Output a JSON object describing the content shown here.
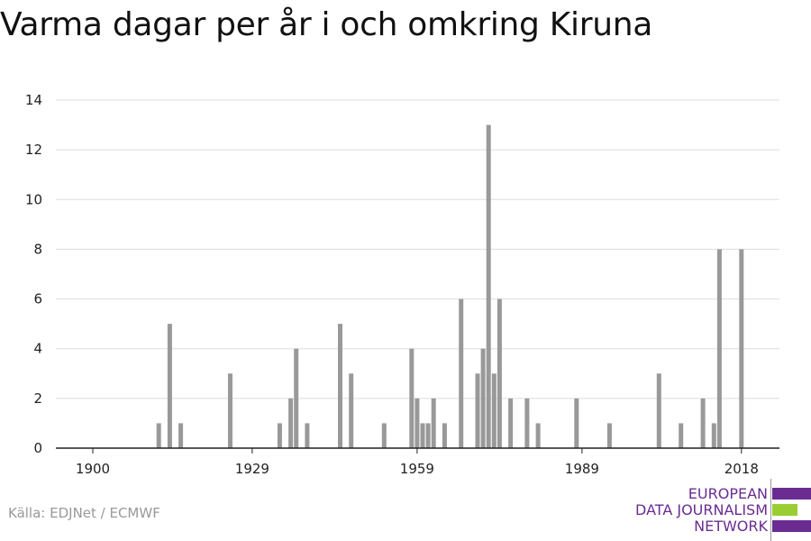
{
  "title": "Varma dagar per år i och omkring Kiruna",
  "source": "Källa: EDJNet / ECMWF",
  "logo": {
    "lines": [
      "EUROPEAN",
      "DATA JOURNALISM",
      "NETWORK"
    ],
    "bar_colors": [
      "#6a2c91",
      "#9acd32",
      "#6a2c91"
    ]
  },
  "colors": {
    "bar": "#999999",
    "grid": "#dddddd",
    "axis": "#222222"
  },
  "chart_data": {
    "type": "bar",
    "title": "Varma dagar per år i och omkring Kiruna",
    "xlabel": "",
    "ylabel": "",
    "xlim": [
      1900,
      2020
    ],
    "ylim": [
      0,
      14
    ],
    "yticks": [
      0,
      2,
      4,
      6,
      8,
      10,
      12,
      14
    ],
    "xticks": [
      1900,
      1929,
      1959,
      1989,
      2018
    ],
    "grid": true,
    "x": [
      1912,
      1914,
      1916,
      1925,
      1934,
      1936,
      1937,
      1939,
      1945,
      1947,
      1953,
      1958,
      1959,
      1960,
      1961,
      1962,
      1964,
      1967,
      1970,
      1971,
      1972,
      1973,
      1974,
      1976,
      1979,
      1981,
      1988,
      1994,
      2003,
      2007,
      2011,
      2013,
      2014,
      2018
    ],
    "values": [
      1,
      5,
      1,
      3,
      1,
      2,
      4,
      1,
      5,
      3,
      1,
      4,
      2,
      1,
      1,
      2,
      1,
      6,
      3,
      4,
      13,
      3,
      6,
      2,
      2,
      1,
      2,
      1,
      3,
      1,
      2,
      1,
      8,
      8
    ]
  }
}
